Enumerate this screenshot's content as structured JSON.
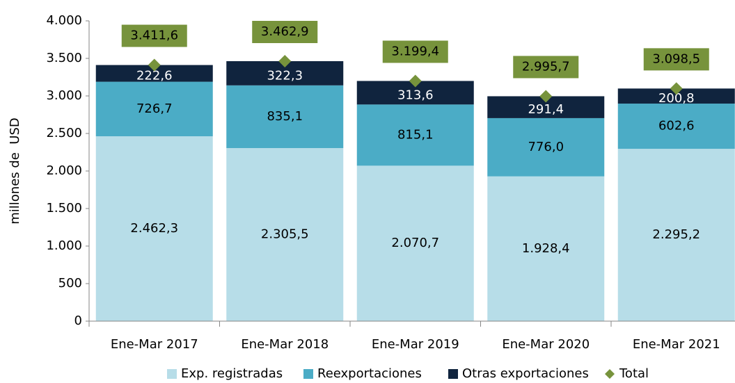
{
  "chart_data": {
    "type": "bar",
    "stacked": true,
    "y_label": "millones de  USD",
    "categories": [
      "Ene-Mar 2017",
      "Ene-Mar 2018",
      "Ene-Mar 2019",
      "Ene-Mar 2020",
      "Ene-Mar 2021"
    ],
    "series": [
      {
        "name": "Exp. registradas",
        "color": "#b7dde8",
        "label_color": "#000000",
        "values": [
          2462.3,
          2305.5,
          2070.7,
          1928.4,
          2295.2
        ],
        "value_labels": [
          "2.462,3",
          "2.305,5",
          "2.070,7",
          "1.928,4",
          "2.295,2"
        ]
      },
      {
        "name": "Reexportaciones",
        "color": "#4bacc6",
        "label_color": "#000000",
        "values": [
          726.7,
          835.1,
          815.1,
          776.0,
          602.6
        ],
        "value_labels": [
          "726,7",
          "835,1",
          "815,1",
          "776,0",
          "602,6"
        ]
      },
      {
        "name": "Otras exportaciones",
        "color": "#10243e",
        "label_color": "#ffffff",
        "values": [
          222.6,
          322.3,
          313.6,
          291.4,
          200.8
        ],
        "value_labels": [
          "222,6",
          "322,3",
          "313,6",
          "291,4",
          "200,8"
        ]
      },
      {
        "name": "Total",
        "type": "scatter",
        "marker": "diamond",
        "color": "#77933c",
        "values": [
          3411.6,
          3462.9,
          3199.4,
          2995.7,
          3098.5
        ],
        "value_labels": [
          "3.411,6",
          "3.462,9",
          "3.199,4",
          "2.995,7",
          "3.098,5"
        ]
      }
    ],
    "ylim": [
      0,
      4000
    ],
    "yticks": [
      0,
      500,
      {
        "value": 1000,
        "label": "1.000"
      },
      {
        "value": 1500,
        "label": "1.500"
      },
      {
        "value": 2000,
        "label": "2.000"
      },
      {
        "value": 2500,
        "label": "2.500"
      },
      {
        "value": 3000,
        "label": "3.000"
      },
      {
        "value": 3500,
        "label": "3.500"
      },
      {
        "value": 4000,
        "label": "4.000"
      }
    ],
    "legend": "bottom"
  }
}
